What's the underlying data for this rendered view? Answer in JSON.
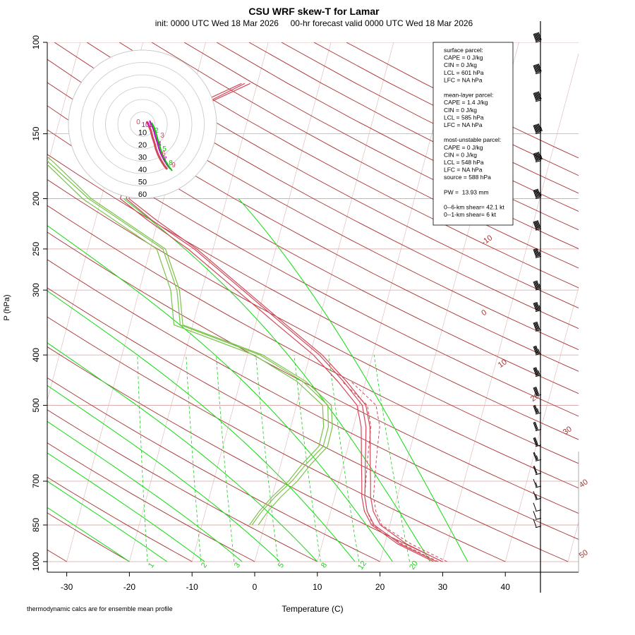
{
  "chart_data": {
    "type": "line",
    "title": "CSU WRF skew-T for Lamar",
    "subtitle": "init: 0000 UTC Wed 18 Mar 2026     00-hr forecast valid 0000 UTC Wed 18 Mar 2026",
    "xlabel": "Temperature (C)",
    "ylabel": "P (hPa)",
    "x_ticks": [
      -30,
      -20,
      -10,
      0,
      10,
      20,
      30,
      40
    ],
    "y_ticks": [
      100,
      150,
      200,
      250,
      300,
      400,
      500,
      700,
      850,
      1000
    ],
    "x_range": [
      -33,
      52
    ],
    "p_range": [
      100,
      1000
    ],
    "mixing_ratio_labels": [
      "1",
      "2",
      "3",
      "5",
      "8",
      "12",
      "20"
    ],
    "dry_adiabat_labels": [
      "-10",
      "0",
      "10",
      "20",
      "30",
      "40",
      "50"
    ],
    "series": [
      {
        "color": "#d2485a",
        "points": [
          [
            1000,
            29.0
          ],
          [
            925,
            22.5
          ],
          [
            850,
            17.5
          ],
          [
            800,
            15.8
          ],
          [
            750,
            14.8
          ],
          [
            700,
            14.2
          ],
          [
            650,
            13.5
          ],
          [
            600,
            12.8
          ],
          [
            550,
            12.0
          ],
          [
            500,
            10.5
          ],
          [
            450,
            6.5
          ],
          [
            400,
            1.5
          ],
          [
            350,
            -5.5
          ],
          [
            300,
            -13.5
          ],
          [
            250,
            -23.0
          ],
          [
            220,
            -31.0
          ],
          [
            200,
            -36.0
          ],
          [
            170,
            -36.0
          ],
          [
            150,
            -33.0
          ],
          [
            130,
            -27.0
          ],
          [
            120,
            -22.0
          ]
        ]
      },
      {
        "color": "#7ac24a",
        "points": [
          [
            850,
            -2.0
          ],
          [
            800,
            -1.0
          ],
          [
            750,
            0.5
          ],
          [
            700,
            2.5
          ],
          [
            650,
            4.0
          ],
          [
            600,
            6.0
          ],
          [
            550,
            6.0
          ],
          [
            500,
            5.0
          ],
          [
            450,
            0.0
          ],
          [
            400,
            -8.0
          ],
          [
            350,
            -22.0
          ],
          [
            300,
            -24.0
          ],
          [
            250,
            -28.0
          ],
          [
            200,
            -42.0
          ],
          [
            170,
            -50.0
          ],
          [
            150,
            -56.0
          ],
          [
            130,
            -62.0
          ]
        ]
      }
    ],
    "parcel": {
      "color": "#d2485a",
      "points": [
        [
          1000,
          30.0
        ],
        [
          925,
          23.5
        ],
        [
          850,
          18.0
        ],
        [
          800,
          16.5
        ],
        [
          750,
          15.5
        ],
        [
          700,
          15.0
        ],
        [
          650,
          14.5
        ],
        [
          600,
          14.0
        ],
        [
          550,
          13.5
        ],
        [
          500,
          12.0
        ],
        [
          450,
          7.0
        ]
      ]
    },
    "ensemble_spread_c": 0.7,
    "hodograph": {
      "ring_labels": [
        "10",
        "20",
        "30",
        "40",
        "50",
        "60"
      ],
      "point_labels": [
        "0",
        "1",
        "2",
        "3",
        "4",
        "5",
        "6",
        "7",
        "8",
        "9",
        "10"
      ],
      "colors": [
        "#d2485a",
        "#cc00cc",
        "#00cc00"
      ]
    },
    "wind_barbs": {
      "p": [
        100,
        115,
        130,
        150,
        170,
        200,
        230,
        260,
        300,
        330,
        360,
        400,
        440,
        480,
        520,
        560,
        600,
        640,
        680,
        720,
        760,
        800,
        830,
        860
      ],
      "speed_kt": [
        70,
        70,
        70,
        75,
        75,
        65,
        60,
        55,
        55,
        55,
        50,
        45,
        45,
        40,
        35,
        30,
        30,
        25,
        20,
        15,
        15,
        10,
        10,
        10
      ]
    },
    "info_box": [
      "surface parcel:",
      "CAPE = 0 J/kg",
      "CIN = 0 J/kg",
      "LCL = 601 hPa",
      "LFC = NA hPa",
      "",
      "mean-layer parcel:",
      "CAPE = 1.4 J/kg",
      "CIN = 0 J/kg",
      "LCL = 585 hPa",
      "LFC = NA hPa",
      "",
      "most-unstable parcel:",
      "CAPE = 0 J/kg",
      "CIN = 0 J/kg",
      "LCL = 548 hPa",
      "LFC = NA hPa",
      "source = 588 hPa",
      "",
      "PW =  13.93 mm",
      "",
      "0--6-km shear= 42.1 kt",
      "0--1-km shear= 6 kt"
    ],
    "footnote": "thermodynamic calcs are for ensemble mean profile"
  }
}
